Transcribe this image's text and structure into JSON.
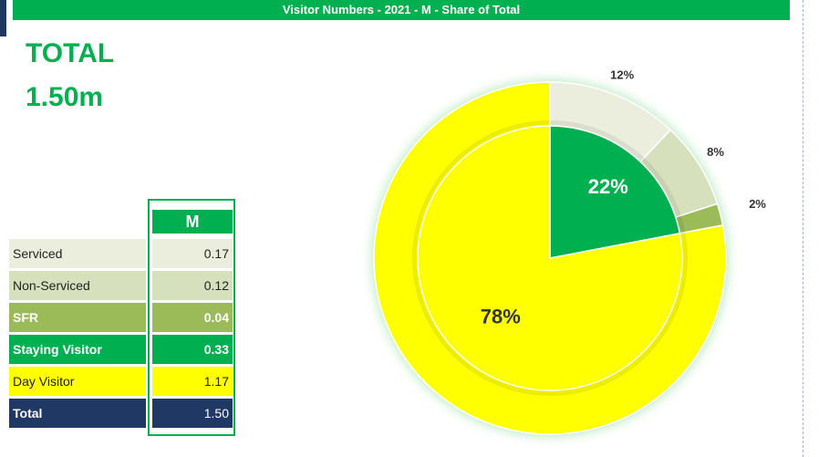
{
  "header": {
    "title": "Visitor Numbers - 2021 - M - Share of Total"
  },
  "total": {
    "label": "TOTAL",
    "value": "1.50m"
  },
  "table": {
    "header": "M",
    "rows": [
      [
        "Serviced",
        "0.17"
      ],
      [
        "Non-Serviced",
        "0.12"
      ],
      [
        "SFR",
        "0.04"
      ],
      [
        "Staying Visitor",
        "0.33"
      ],
      [
        "Day Visitor",
        "1.17"
      ],
      [
        "Total",
        "1.50"
      ]
    ]
  },
  "chart_data": {
    "type": "pie",
    "rings": [
      {
        "values": [
          12,
          8,
          2,
          78
        ],
        "value_labels": [
          "12%",
          "8%",
          "2%",
          null
        ],
        "colors": [
          "#ebeedd",
          "#d6e0bd",
          "#9bbb59",
          "#ffff00"
        ]
      },
      {
        "values": [
          22,
          78
        ],
        "value_labels": [
          "22%",
          "78%"
        ],
        "colors": [
          "#00b050",
          "#ffff00"
        ]
      }
    ]
  }
}
